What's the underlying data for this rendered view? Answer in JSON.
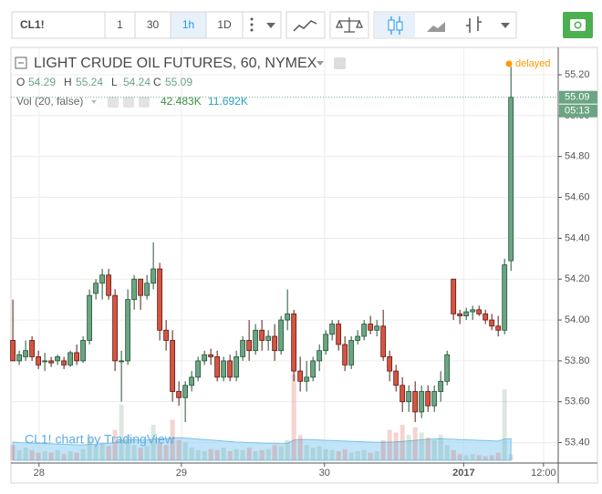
{
  "toolbar": {
    "symbol": "CL1!",
    "intervals": [
      "1",
      "30",
      "1h",
      "1D"
    ],
    "active_interval": 2
  },
  "chart_data": {
    "type": "candlestick",
    "title": "LIGHT CRUDE OIL FUTURES, 60, NYMEX",
    "status": "delayed",
    "watermark": "CL1! chart by TradingView",
    "countdown": "05:13",
    "legend": {
      "open": "O",
      "high": "H",
      "low": "L",
      "close": "C",
      "volume": "Vol (20, false)",
      "volume_ma_text": "42.483K",
      "volume_text": "11.692K"
    },
    "open": [
      53.9,
      53.8,
      53.82,
      53.9,
      53.82,
      53.8,
      53.8,
      53.8,
      53.8,
      53.78,
      53.84,
      53.8,
      53.9,
      54.13,
      54.18,
      54.22,
      54.12,
      53.8,
      53.8,
      54.1,
      54.2,
      54.12,
      54.18,
      54.25,
      53.95,
      53.9,
      53.65,
      53.62,
      53.68,
      53.72,
      53.8,
      53.83,
      53.82,
      53.72,
      53.8,
      53.72,
      53.82,
      53.9,
      53.85,
      53.95,
      53.9,
      53.92,
      53.85,
      54.0,
      54.03,
      53.75,
      53.7,
      53.72,
      53.8,
      53.85,
      53.93,
      53.98,
      53.88,
      53.78,
      53.9,
      53.92,
      53.98,
      53.95,
      53.97,
      53.82,
      53.75,
      53.68,
      53.6,
      53.65,
      53.55,
      53.65,
      53.58,
      53.65,
      53.7,
      54.2,
      54.03,
      54.02,
      54.04,
      54.05,
      54.03,
      54.0,
      53.97,
      53.95,
      54.29
    ],
    "high": [
      54.1,
      53.85,
      53.9,
      53.92,
      53.85,
      53.84,
      53.82,
      53.83,
      53.82,
      53.85,
      53.88,
      53.92,
      54.15,
      54.2,
      54.25,
      54.25,
      54.15,
      53.85,
      54.15,
      54.22,
      54.2,
      54.22,
      54.38,
      54.28,
      54.0,
      53.95,
      53.7,
      53.7,
      53.75,
      53.82,
      53.85,
      53.86,
      53.85,
      53.82,
      53.83,
      53.85,
      53.92,
      54.0,
      53.98,
      54.0,
      53.95,
      53.98,
      54.02,
      54.15,
      54.05,
      53.82,
      53.8,
      53.82,
      53.88,
      53.95,
      54.0,
      54.0,
      53.92,
      53.92,
      53.95,
      54.0,
      54.02,
      54.0,
      54.05,
      53.85,
      53.78,
      53.72,
      53.68,
      53.7,
      53.68,
      53.68,
      53.68,
      53.75,
      53.85,
      54.2,
      54.05,
      54.06,
      54.07,
      54.07,
      54.05,
      54.03,
      54.02,
      54.3,
      55.24
    ],
    "low": [
      53.8,
      53.78,
      53.8,
      53.8,
      53.76,
      53.75,
      53.77,
      53.78,
      53.76,
      53.77,
      53.78,
      53.79,
      53.88,
      54.1,
      54.1,
      54.1,
      53.75,
      53.6,
      53.78,
      54.05,
      54.05,
      54.1,
      54.15,
      53.9,
      53.85,
      53.6,
      53.58,
      53.5,
      53.65,
      53.7,
      53.78,
      53.78,
      53.7,
      53.7,
      53.7,
      53.7,
      53.8,
      53.8,
      53.83,
      53.85,
      53.85,
      53.8,
      53.83,
      53.95,
      53.7,
      53.65,
      53.65,
      53.7,
      53.75,
      53.83,
      53.9,
      53.85,
      53.75,
      53.76,
      53.88,
      53.9,
      53.93,
      53.92,
      53.8,
      53.7,
      53.65,
      53.55,
      53.55,
      53.5,
      53.52,
      53.55,
      53.55,
      53.6,
      53.68,
      54.0,
      53.98,
      54.0,
      54.0,
      54.02,
      53.98,
      53.95,
      53.92,
      53.93,
      54.24
    ],
    "close": [
      53.8,
      53.83,
      53.85,
      53.82,
      53.78,
      53.8,
      53.79,
      53.82,
      53.78,
      53.84,
      53.8,
      53.9,
      54.12,
      54.18,
      54.22,
      54.12,
      53.8,
      53.8,
      54.1,
      54.2,
      54.12,
      54.18,
      54.25,
      53.95,
      53.9,
      53.65,
      53.62,
      53.68,
      53.72,
      53.8,
      53.83,
      53.82,
      53.72,
      53.8,
      53.72,
      53.82,
      53.9,
      53.85,
      53.95,
      53.9,
      53.92,
      53.85,
      54.0,
      54.03,
      53.75,
      53.7,
      53.72,
      53.8,
      53.85,
      53.93,
      53.98,
      53.88,
      53.78,
      53.9,
      53.92,
      53.98,
      53.95,
      53.97,
      53.82,
      53.75,
      53.68,
      53.6,
      53.65,
      53.55,
      53.65,
      53.58,
      53.65,
      53.7,
      53.83,
      54.03,
      54.02,
      54.04,
      54.05,
      54.03,
      54.0,
      53.97,
      53.95,
      54.27,
      55.09
    ],
    "volume": [
      30000,
      20000,
      25000,
      20000,
      15000,
      18000,
      15000,
      20000,
      12000,
      18000,
      15000,
      22000,
      45000,
      30000,
      35000,
      28000,
      60000,
      110000,
      50000,
      30000,
      25000,
      28000,
      70000,
      35000,
      30000,
      80000,
      40000,
      35000,
      25000,
      20000,
      18000,
      22000,
      20000,
      25000,
      18000,
      22000,
      20000,
      25000,
      18000,
      20000,
      22000,
      30000,
      28000,
      40000,
      170000,
      50000,
      30000,
      25000,
      28000,
      22000,
      20000,
      18000,
      22000,
      15000,
      18000,
      20000,
      15000,
      18000,
      40000,
      60000,
      55000,
      70000,
      50000,
      65000,
      55000,
      45000,
      40000,
      50000,
      30000,
      20000,
      12000,
      10000,
      12000,
      10000,
      8000,
      10000,
      15000,
      140000,
      11692
    ],
    "volume_ma": [
      36000,
      35000,
      34500,
      34000,
      33500,
      33000,
      32500,
      32000,
      31500,
      31000,
      30500,
      30500,
      31500,
      32000,
      33000,
      33500,
      35000,
      39000,
      40000,
      40500,
      40000,
      40000,
      42000,
      42500,
      42000,
      44000,
      44500,
      44000,
      43000,
      42000,
      41000,
      40000,
      39000,
      38000,
      37000,
      36000,
      35500,
      35000,
      34500,
      34000,
      33500,
      33500,
      33000,
      33500,
      40000,
      41000,
      41000,
      40500,
      40000,
      39500,
      39000,
      38500,
      38000,
      37500,
      37000,
      36500,
      36000,
      35500,
      35500,
      36000,
      36500,
      37500,
      38500,
      39500,
      40500,
      41500,
      42000,
      42500,
      42000,
      41500,
      41000,
      40500,
      40000,
      39500,
      39000,
      38500,
      38000,
      42000,
      42483
    ],
    "up_color": "#6ba583",
    "down_color": "#d75442",
    "up_border": "#225437",
    "down_border": "#5b1a13",
    "ylim": [
      53.3,
      55.334
    ],
    "yticks": [
      {
        "value": 53.4,
        "label": "53.40"
      },
      {
        "value": 53.6,
        "label": "53.60"
      },
      {
        "value": 53.8,
        "label": "53.80"
      },
      {
        "value": 54,
        "label": "54.00"
      },
      {
        "value": 54.2,
        "label": "54.20"
      },
      {
        "value": 54.4,
        "label": "54.40"
      },
      {
        "value": 54.6,
        "label": "54.60"
      },
      {
        "value": 54.8,
        "label": "54.80"
      },
      {
        "value": 55,
        "label": "55.00"
      },
      {
        "value": 55.2,
        "label": "55.20"
      }
    ],
    "xlim": [
      -0.3,
      85.4
    ],
    "xticks": [
      {
        "value": 4.1,
        "label": "28"
      },
      {
        "value": 26.4,
        "label": "29"
      },
      {
        "value": 48.8,
        "label": "30"
      },
      {
        "value": 70.6,
        "label": "2017"
      },
      {
        "value": 83.1,
        "label": "12:00"
      }
    ],
    "volume_lim": [
      0,
      180000
    ],
    "grid": true
  }
}
